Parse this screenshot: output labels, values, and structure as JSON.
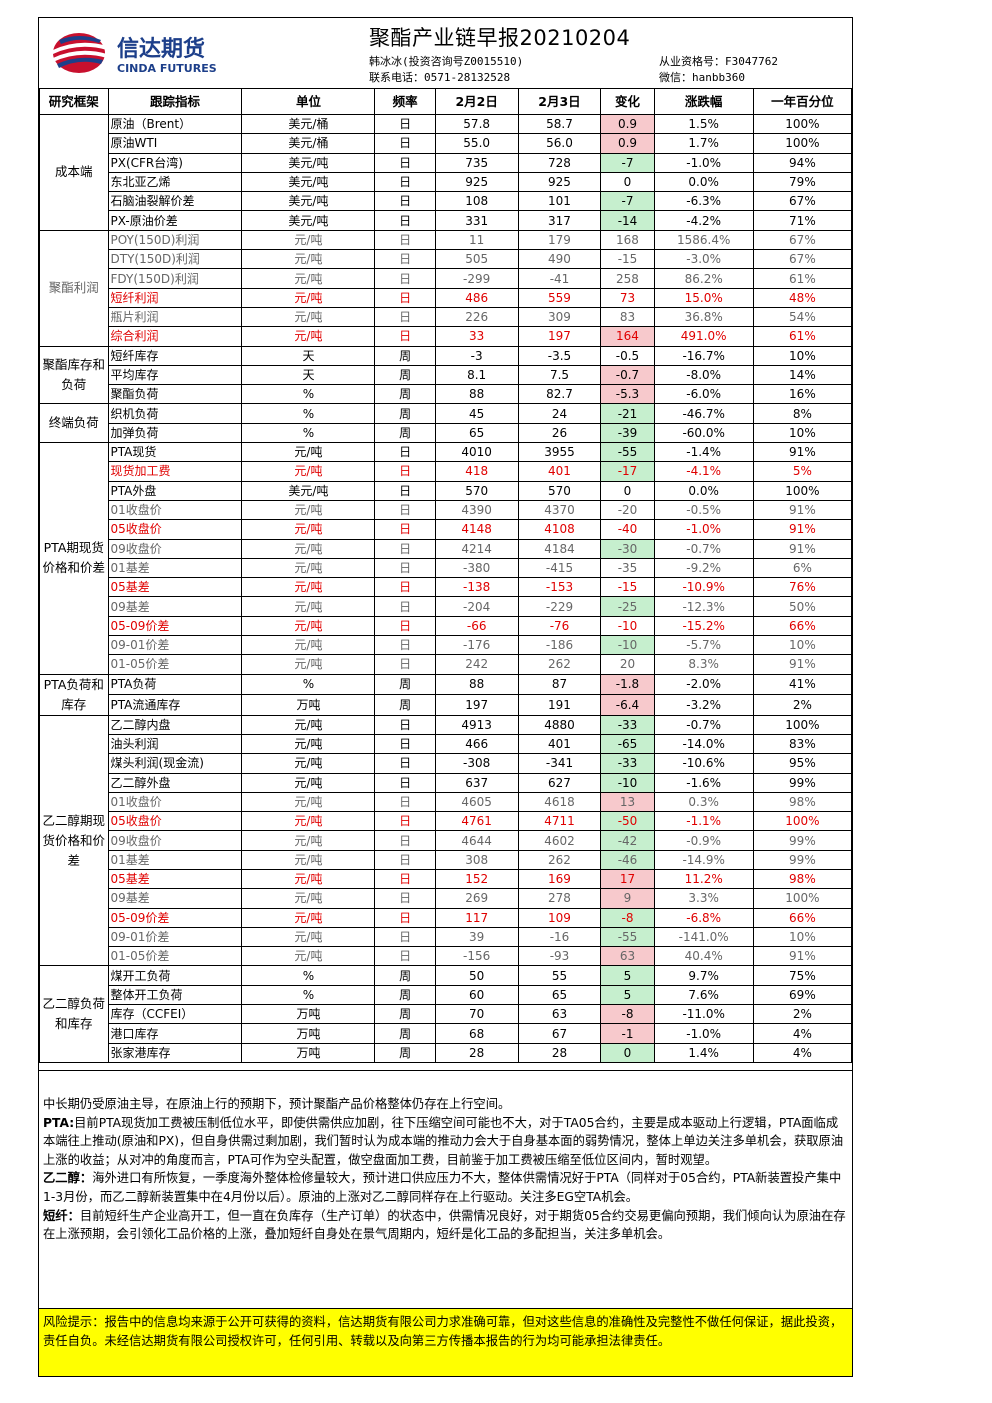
{
  "header": {
    "logo_cn": "信达期货",
    "logo_en": "CINDA FUTURES",
    "title": "聚酯产业链早报20210204",
    "analyst": "韩冰冰(投资咨询号Z0015510)",
    "phone": "联系电话：0571-28132528",
    "license": "从业资格号：F3047762",
    "wechat": "微信：hanbb360"
  },
  "columns": [
    "研究框架",
    "跟踪指标",
    "单位",
    "频率",
    "2月2日",
    "2月3日",
    "变化",
    "涨跌幅",
    "一年百分位"
  ],
  "groups": [
    {
      "name": "成本端",
      "rows": [
        {
          "ind": "原油（Brent）",
          "unit": "美元/桶",
          "freq": "日",
          "d1": "57.8",
          "d2": "58.7",
          "chg": "0.9",
          "pct": "1.5%",
          "pctl": "100%",
          "bg": "pos",
          "style": "normal"
        },
        {
          "ind": "原油WTI",
          "unit": "美元/桶",
          "freq": "日",
          "d1": "55.0",
          "d2": "56.0",
          "chg": "0.9",
          "pct": "1.7%",
          "pctl": "100%",
          "bg": "pos",
          "style": "normal"
        },
        {
          "ind": "PX(CFR台湾)",
          "unit": "美元/吨",
          "freq": "日",
          "d1": "735",
          "d2": "728",
          "chg": "-7",
          "pct": "-1.0%",
          "pctl": "94%",
          "bg": "neg",
          "style": "normal"
        },
        {
          "ind": "东北亚乙烯",
          "unit": "美元/吨",
          "freq": "日",
          "d1": "925",
          "d2": "925",
          "chg": "0",
          "pct": "0.0%",
          "pctl": "79%",
          "bg": "",
          "style": "normal"
        },
        {
          "ind": "石脑油裂解价差",
          "unit": "美元/吨",
          "freq": "日",
          "d1": "108",
          "d2": "101",
          "chg": "-7",
          "pct": "-6.3%",
          "pctl": "67%",
          "bg": "neg",
          "style": "normal"
        },
        {
          "ind": "PX-原油价差",
          "unit": "美元/吨",
          "freq": "日",
          "d1": "331",
          "d2": "317",
          "chg": "-14",
          "pct": "-4.2%",
          "pctl": "71%",
          "bg": "neg",
          "style": "normal"
        }
      ]
    },
    {
      "name": "聚酯利润",
      "rows": [
        {
          "ind": "POY(150D)利润",
          "unit": "元/吨",
          "freq": "日",
          "d1": "11",
          "d2": "179",
          "chg": "168",
          "pct": "1586.4%",
          "pctl": "67%",
          "bg": "",
          "style": "small"
        },
        {
          "ind": "DTY(150D)利润",
          "unit": "元/吨",
          "freq": "日",
          "d1": "505",
          "d2": "490",
          "chg": "-15",
          "pct": "-3.0%",
          "pctl": "67%",
          "bg": "",
          "style": "small"
        },
        {
          "ind": "FDY(150D)利润",
          "unit": "元/吨",
          "freq": "日",
          "d1": "-299",
          "d2": "-41",
          "chg": "258",
          "pct": "86.2%",
          "pctl": "61%",
          "bg": "",
          "style": "small"
        },
        {
          "ind": "短纤利润",
          "unit": "元/吨",
          "freq": "日",
          "d1": "486",
          "d2": "559",
          "chg": "73",
          "pct": "15.0%",
          "pctl": "48%",
          "bg": "",
          "style": "redl"
        },
        {
          "ind": "瓶片利润",
          "unit": "元/吨",
          "freq": "日",
          "d1": "226",
          "d2": "309",
          "chg": "83",
          "pct": "36.8%",
          "pctl": "54%",
          "bg": "",
          "style": "small"
        },
        {
          "ind": "综合利润",
          "unit": "元/吨",
          "freq": "日",
          "d1": "33",
          "d2": "197",
          "chg": "164",
          "pct": "491.0%",
          "pctl": "61%",
          "bg": "pos",
          "style": "redl"
        }
      ]
    },
    {
      "name": "聚酯库存和负荷",
      "rows": [
        {
          "ind": "短纤库存",
          "unit": "天",
          "freq": "周",
          "d1": "-3",
          "d2": "-3.5",
          "chg": "-0.5",
          "pct": "-16.7%",
          "pctl": "10%",
          "bg": "",
          "style": "normal"
        },
        {
          "ind": "平均库存",
          "unit": "天",
          "freq": "周",
          "d1": "8.1",
          "d2": "7.5",
          "chg": "-0.7",
          "pct": "-8.0%",
          "pctl": "14%",
          "bg": "pos",
          "style": "normal"
        },
        {
          "ind": "聚酯负荷",
          "unit": "%",
          "freq": "周",
          "d1": "88",
          "d2": "82.7",
          "chg": "-5.3",
          "pct": "-6.0%",
          "pctl": "16%",
          "bg": "pos",
          "style": "normal"
        }
      ]
    },
    {
      "name": "终端负荷",
      "rows": [
        {
          "ind": "织机负荷",
          "unit": "%",
          "freq": "周",
          "d1": "45",
          "d2": "24",
          "chg": "-21",
          "pct": "-46.7%",
          "pctl": "8%",
          "bg": "neg",
          "style": "normal"
        },
        {
          "ind": "加弹负荷",
          "unit": "%",
          "freq": "周",
          "d1": "65",
          "d2": "26",
          "chg": "-39",
          "pct": "-60.0%",
          "pctl": "10%",
          "bg": "neg",
          "style": "normal"
        }
      ]
    },
    {
      "name": "PTA期现货价格和价差",
      "rows": [
        {
          "ind": "PTA现货",
          "unit": "元/吨",
          "freq": "日",
          "d1": "4010",
          "d2": "3955",
          "chg": "-55",
          "pct": "-1.4%",
          "pctl": "91%",
          "bg": "neg",
          "style": "normal"
        },
        {
          "ind": "现货加工费",
          "unit": "元/吨",
          "freq": "日",
          "d1": "418",
          "d2": "401",
          "chg": "-17",
          "pct": "-4.1%",
          "pctl": "5%",
          "bg": "neg",
          "style": "redl"
        },
        {
          "ind": "PTA外盘",
          "unit": "美元/吨",
          "freq": "日",
          "d1": "570",
          "d2": "570",
          "chg": "0",
          "pct": "0.0%",
          "pctl": "100%",
          "bg": "",
          "style": "normal"
        },
        {
          "ind": "01收盘价",
          "unit": "元/吨",
          "freq": "日",
          "d1": "4390",
          "d2": "4370",
          "chg": "-20",
          "pct": "-0.5%",
          "pctl": "91%",
          "bg": "",
          "style": "small"
        },
        {
          "ind": "05收盘价",
          "unit": "元/吨",
          "freq": "日",
          "d1": "4148",
          "d2": "4108",
          "chg": "-40",
          "pct": "-1.0%",
          "pctl": "91%",
          "bg": "",
          "style": "redbig"
        },
        {
          "ind": "09收盘价",
          "unit": "元/吨",
          "freq": "日",
          "d1": "4214",
          "d2": "4184",
          "chg": "-30",
          "pct": "-0.7%",
          "pctl": "91%",
          "bg": "neg",
          "style": "small"
        },
        {
          "ind": "01基差",
          "unit": "元/吨",
          "freq": "日",
          "d1": "-380",
          "d2": "-415",
          "chg": "-35",
          "pct": "-9.2%",
          "pctl": "6%",
          "bg": "",
          "style": "small"
        },
        {
          "ind": "05基差",
          "unit": "元/吨",
          "freq": "日",
          "d1": "-138",
          "d2": "-153",
          "chg": "-15",
          "pct": "-10.9%",
          "pctl": "76%",
          "bg": "",
          "style": "redbig"
        },
        {
          "ind": "09基差",
          "unit": "元/吨",
          "freq": "日",
          "d1": "-204",
          "d2": "-229",
          "chg": "-25",
          "pct": "-12.3%",
          "pctl": "50%",
          "bg": "neg",
          "style": "small"
        },
        {
          "ind": "05-09价差",
          "unit": "元/吨",
          "freq": "日",
          "d1": "-66",
          "d2": "-76",
          "chg": "-10",
          "pct": "-15.2%",
          "pctl": "66%",
          "bg": "",
          "style": "redbig"
        },
        {
          "ind": "09-01价差",
          "unit": "元/吨",
          "freq": "日",
          "d1": "-176",
          "d2": "-186",
          "chg": "-10",
          "pct": "-5.7%",
          "pctl": "10%",
          "bg": "neg",
          "style": "small"
        },
        {
          "ind": "01-05价差",
          "unit": "元/吨",
          "freq": "日",
          "d1": "242",
          "d2": "262",
          "chg": "20",
          "pct": "8.3%",
          "pctl": "91%",
          "bg": "",
          "style": "small"
        }
      ]
    },
    {
      "name": "PTA负荷和库存",
      "rows": [
        {
          "ind": "PTA负荷",
          "unit": "%",
          "freq": "周",
          "d1": "88",
          "d2": "87",
          "chg": "-1.8",
          "pct": "-2.0%",
          "pctl": "41%",
          "bg": "pos",
          "style": "normal"
        },
        {
          "ind": "PTA流通库存",
          "unit": "万吨",
          "freq": "周",
          "d1": "197",
          "d2": "191",
          "chg": "-6.4",
          "pct": "-3.2%",
          "pctl": "2%",
          "bg": "pos",
          "style": "normal"
        }
      ]
    },
    {
      "name": "乙二醇期现货价格和价差",
      "rows": [
        {
          "ind": "乙二醇内盘",
          "unit": "元/吨",
          "freq": "日",
          "d1": "4913",
          "d2": "4880",
          "chg": "-33",
          "pct": "-0.7%",
          "pctl": "100%",
          "bg": "neg",
          "style": "normal"
        },
        {
          "ind": "油头利润",
          "unit": "元/吨",
          "freq": "日",
          "d1": "466",
          "d2": "401",
          "chg": "-65",
          "pct": "-14.0%",
          "pctl": "83%",
          "bg": "neg",
          "style": "normal"
        },
        {
          "ind": "煤头利润(现金流)",
          "unit": "元/吨",
          "freq": "日",
          "d1": "-308",
          "d2": "-341",
          "chg": "-33",
          "pct": "-10.6%",
          "pctl": "95%",
          "bg": "neg",
          "style": "normal"
        },
        {
          "ind": "乙二醇外盘",
          "unit": "元/吨",
          "freq": "日",
          "d1": "637",
          "d2": "627",
          "chg": "-10",
          "pct": "-1.6%",
          "pctl": "99%",
          "bg": "neg",
          "style": "normal"
        },
        {
          "ind": "01收盘价",
          "unit": "元/吨",
          "freq": "日",
          "d1": "4605",
          "d2": "4618",
          "chg": "13",
          "pct": "0.3%",
          "pctl": "98%",
          "bg": "pos",
          "style": "small"
        },
        {
          "ind": "05收盘价",
          "unit": "元/吨",
          "freq": "日",
          "d1": "4761",
          "d2": "4711",
          "chg": "-50",
          "pct": "-1.1%",
          "pctl": "100%",
          "bg": "neg",
          "style": "redbig"
        },
        {
          "ind": "09收盘价",
          "unit": "元/吨",
          "freq": "日",
          "d1": "4644",
          "d2": "4602",
          "chg": "-42",
          "pct": "-0.9%",
          "pctl": "99%",
          "bg": "neg",
          "style": "small"
        },
        {
          "ind": "01基差",
          "unit": "元/吨",
          "freq": "日",
          "d1": "308",
          "d2": "262",
          "chg": "-46",
          "pct": "-14.9%",
          "pctl": "99%",
          "bg": "neg",
          "style": "small"
        },
        {
          "ind": "05基差",
          "unit": "元/吨",
          "freq": "日",
          "d1": "152",
          "d2": "169",
          "chg": "17",
          "pct": "11.2%",
          "pctl": "98%",
          "bg": "pos",
          "style": "redbig"
        },
        {
          "ind": "09基差",
          "unit": "元/吨",
          "freq": "日",
          "d1": "269",
          "d2": "278",
          "chg": "9",
          "pct": "3.3%",
          "pctl": "100%",
          "bg": "pos",
          "style": "small"
        },
        {
          "ind": "05-09价差",
          "unit": "元/吨",
          "freq": "日",
          "d1": "117",
          "d2": "109",
          "chg": "-8",
          "pct": "-6.8%",
          "pctl": "66%",
          "bg": "neg",
          "style": "redbig"
        },
        {
          "ind": "09-01价差",
          "unit": "元/吨",
          "freq": "日",
          "d1": "39",
          "d2": "-16",
          "chg": "-55",
          "pct": "-141.0%",
          "pctl": "10%",
          "bg": "neg",
          "style": "small"
        },
        {
          "ind": "01-05价差",
          "unit": "元/吨",
          "freq": "日",
          "d1": "-156",
          "d2": "-93",
          "chg": "63",
          "pct": "40.4%",
          "pctl": "91%",
          "bg": "pos",
          "style": "small"
        }
      ]
    },
    {
      "name": "乙二醇负荷和库存",
      "rows": [
        {
          "ind": "煤开工负荷",
          "unit": "%",
          "freq": "周",
          "d1": "50",
          "d2": "55",
          "chg": "5",
          "pct": "9.7%",
          "pctl": "75%",
          "bg": "neg",
          "style": "normal"
        },
        {
          "ind": "整体开工负荷",
          "unit": "%",
          "freq": "周",
          "d1": "60",
          "d2": "65",
          "chg": "5",
          "pct": "7.6%",
          "pctl": "69%",
          "bg": "neg",
          "style": "normal"
        },
        {
          "ind": "库存（CCFEI）",
          "unit": "万吨",
          "freq": "周",
          "d1": "70",
          "d2": "63",
          "chg": "-8",
          "pct": "-11.0%",
          "pctl": "2%",
          "bg": "pos",
          "style": "normal"
        },
        {
          "ind": "港口库存",
          "unit": "万吨",
          "freq": "周",
          "d1": "68",
          "d2": "67",
          "chg": "-1",
          "pct": "-1.0%",
          "pctl": "4%",
          "bg": "pos",
          "style": "normal"
        },
        {
          "ind": "张家港库存",
          "unit": "万吨",
          "freq": "周",
          "d1": "28",
          "d2": "28",
          "chg": "0",
          "pct": "1.4%",
          "pctl": "4%",
          "bg": "neg",
          "style": "normal"
        }
      ]
    }
  ],
  "comment": {
    "p1": "中长期仍受原油主导，在原油上行的预期下，预计聚酯产品价格整体仍存在上行空间。",
    "p2_label": "PTA:",
    "p2": "目前PTA现货加工费被压制低位水平，即使供需供应加剧，往下压缩空间可能也不大，对于TA05合约，主要是成本驱动上行逻辑，PTA面临成本端往上推动(原油和PX)，但自身供需过剩加剧，我们暂时认为成本端的推动力会大于自身基本面的弱势情况，整体上单边关注多单机会，获取原油上涨的收益；从对冲的角度而言，PTA可作为空头配置，做空盘面加工费，目前鉴于加工费被压缩至低位区间内，暂时观望。",
    "p3_label": "乙二醇：",
    "p3": "海外进口有所恢复，一季度海外整体检修量较大，预计进口供应压力不大，整体供需情况好于PTA（同样对于05合约，PTA新装置投产集中1-3月份，而乙二醇新装置集中在4月份以后）。原油的上涨对乙二醇同样存在上行驱动。关注多EG空TA机会。",
    "p4_label": "短纤：",
    "p4": "目前短纤生产企业高开工，但一直在负库存（生产订单）的状态中，供需情况良好，对于期货05合约交易更偏向预期，我们倾向认为原油在存在上涨预期，会引领化工品价格的上涨，叠加短纤自身处在景气周期内，短纤是化工品的多配担当，关注多单机会。"
  },
  "risk": "风险提示：报告中的信息均来源于公开可获得的资料，信达期货有限公司力求准确可靠，但对这些信息的准确性及完整性不做任何保证，据此投资，责任自负。未经信达期货有限公司授权许可，任何引用、转载以及向第三方传播本报告的行为均可能承担法律责任。",
  "colors": {
    "pos": "#f7c9cc",
    "neg": "#c6efce",
    "red": "#e00000",
    "risk_bg": "#ffff00"
  }
}
